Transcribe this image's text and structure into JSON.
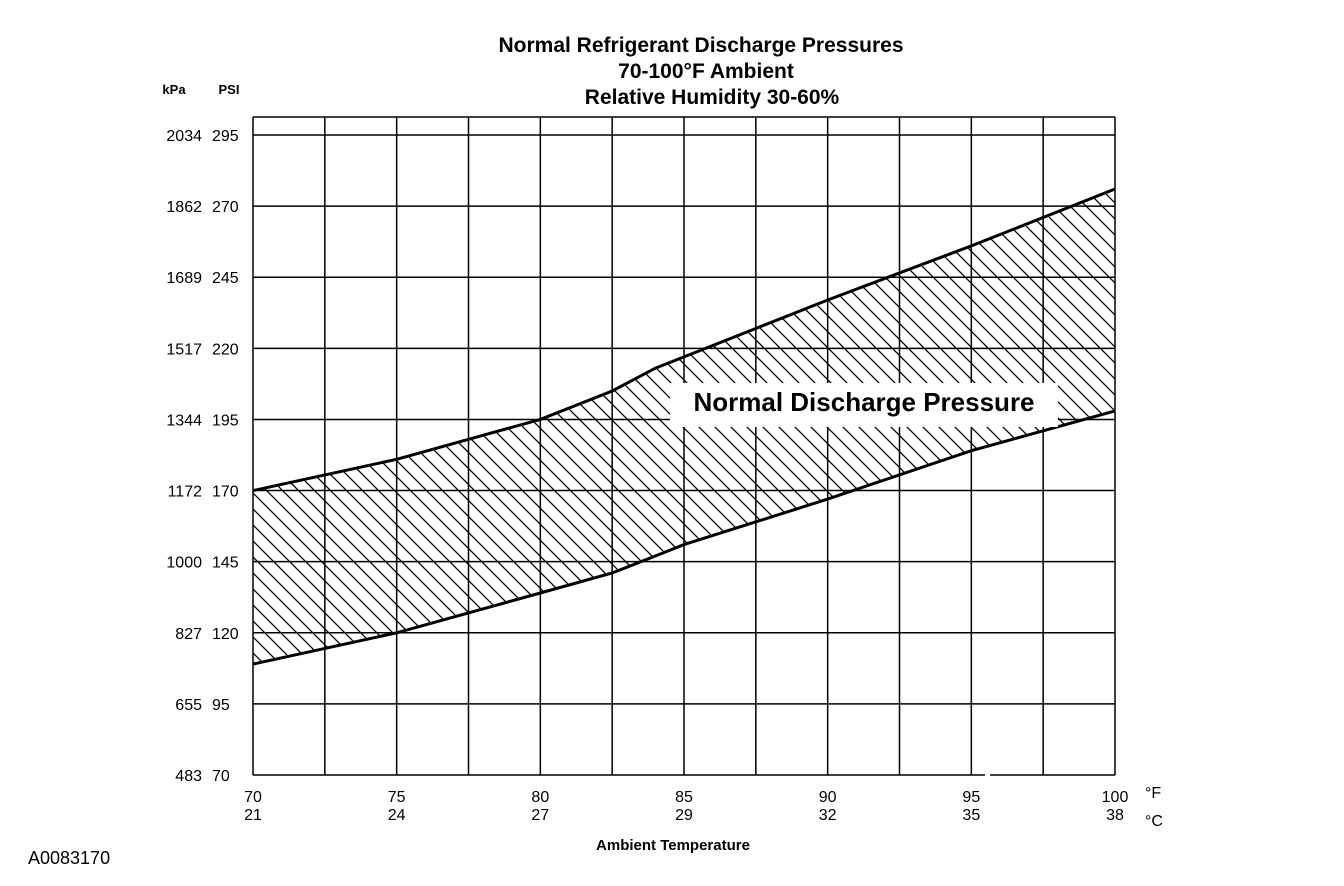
{
  "figure_id": "A0083170",
  "chart_data": {
    "type": "area",
    "title": [
      "Normal  Refrigerant  Discharge  Pressures",
      "70-100°F Ambient",
      "Relative Humidity 30-60%"
    ],
    "xlabel": "Ambient Temperature",
    "x_unit_f": "°F",
    "x_unit_c": "°C",
    "y_unit_kpa": "kPa",
    "y_unit_psi": "PSI",
    "xlim": [
      70,
      100
    ],
    "ylim": [
      70,
      295
    ],
    "x_ticks": [
      {
        "f": "70",
        "c": "21",
        "value": 70
      },
      {
        "f": "75",
        "c": "24",
        "value": 75
      },
      {
        "f": "80",
        "c": "27",
        "value": 80
      },
      {
        "f": "85",
        "c": "29",
        "value": 85
      },
      {
        "f": "90",
        "c": "32",
        "value": 90
      },
      {
        "f": "95",
        "c": "35",
        "value": 95
      },
      {
        "f": "100",
        "c": "38",
        "value": 100
      }
    ],
    "x_minor_gridlines": [
      72.5,
      77.5,
      82.5,
      87.5,
      92.5,
      97.5
    ],
    "y_ticks": [
      {
        "psi": "295",
        "kpa": "2034",
        "value": 295
      },
      {
        "psi": "270",
        "kpa": "1862",
        "value": 270
      },
      {
        "psi": "245",
        "kpa": "1689",
        "value": 245
      },
      {
        "psi": "220",
        "kpa": "1517",
        "value": 220
      },
      {
        "psi": "195",
        "kpa": "1344",
        "value": 195
      },
      {
        "psi": "170",
        "kpa": "1172",
        "value": 170
      },
      {
        "psi": "145",
        "kpa": "1000",
        "value": 145
      },
      {
        "psi": "120",
        "kpa": "827",
        "value": 120
      },
      {
        "psi": "95",
        "kpa": "655",
        "value": 95
      },
      {
        "psi": "70",
        "kpa": "483",
        "value": 70
      }
    ],
    "grid": true,
    "series": [
      {
        "name": "Normal Discharge Pressure",
        "upper": [
          [
            70,
            170
          ],
          [
            75,
            181
          ],
          [
            80,
            195
          ],
          [
            82.5,
            205
          ],
          [
            84,
            213
          ],
          [
            85,
            217
          ],
          [
            90,
            237
          ],
          [
            95,
            256
          ],
          [
            100,
            276
          ]
        ],
        "lower": [
          [
            70,
            109
          ],
          [
            75,
            120
          ],
          [
            80,
            134
          ],
          [
            82.5,
            141
          ],
          [
            84,
            147
          ],
          [
            85,
            151
          ],
          [
            90,
            167
          ],
          [
            95,
            184
          ],
          [
            100,
            198
          ]
        ]
      }
    ]
  }
}
